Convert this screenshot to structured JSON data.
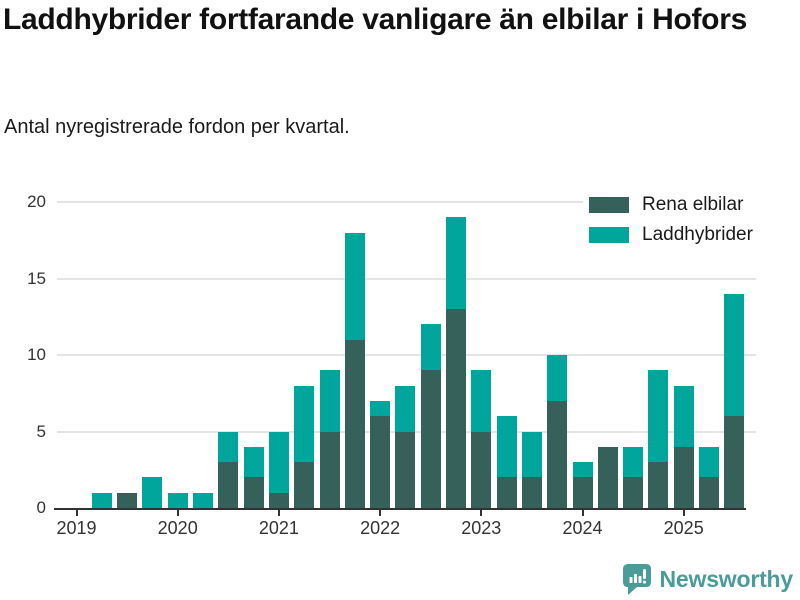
{
  "header": {
    "title": "Laddhybrider fortfarande vanligare än elbilar i Hofors",
    "subtitle": "Antal nyregistrerade fordon per kvartal."
  },
  "chart_data": {
    "type": "bar",
    "stacked": true,
    "title": "Laddhybrider fortfarande vanligare än elbilar i Hofors",
    "subtitle": "Antal nyregistrerade fordon per kvartal.",
    "categories": [
      "2019 Q1",
      "2019 Q2",
      "2019 Q3",
      "2019 Q4",
      "2020 Q1",
      "2020 Q2",
      "2020 Q3",
      "2020 Q4",
      "2021 Q1",
      "2021 Q2",
      "2021 Q3",
      "2021 Q4",
      "2022 Q1",
      "2022 Q2",
      "2022 Q3",
      "2022 Q4",
      "2023 Q1",
      "2023 Q2",
      "2023 Q3",
      "2023 Q4",
      "2024 Q1",
      "2024 Q2",
      "2024 Q3",
      "2024 Q4",
      "2025 Q1",
      "2025 Q2",
      "2025 Q3"
    ],
    "series": [
      {
        "name": "Rena elbilar",
        "color": "#36605a",
        "values": [
          0,
          0,
          1,
          0,
          0,
          0,
          3,
          2,
          1,
          3,
          5,
          11,
          6,
          5,
          9,
          13,
          5,
          2,
          2,
          7,
          2,
          4,
          2,
          3,
          4,
          2,
          6
        ]
      },
      {
        "name": "Laddhybrider",
        "color": "#00a69b",
        "values": [
          0,
          1,
          0,
          2,
          1,
          1,
          2,
          2,
          4,
          5,
          4,
          7,
          1,
          3,
          3,
          6,
          4,
          4,
          3,
          3,
          1,
          0,
          2,
          6,
          4,
          2,
          8
        ]
      }
    ],
    "xlabel": "",
    "ylabel": "",
    "ylim": [
      0,
      20
    ],
    "y_ticks": [
      0,
      5,
      10,
      15,
      20
    ],
    "x_tick_labels": [
      "2019",
      "2020",
      "2021",
      "2022",
      "2023",
      "2024",
      "2025"
    ],
    "x_tick_indices": [
      0,
      4,
      8,
      12,
      16,
      20,
      24
    ],
    "grid": "horizontal",
    "legend_position": "top-right"
  },
  "footer": {
    "brand": "Newsworthy",
    "brand_color": "#4a9c99",
    "logo_icon": "bar-chart-speech-bubble"
  }
}
